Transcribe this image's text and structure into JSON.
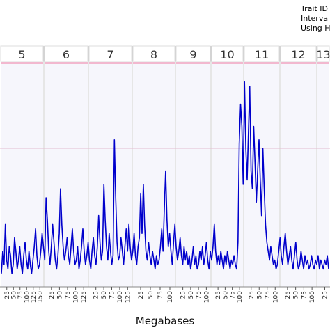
{
  "legend": {
    "lines": [
      "Trait ID",
      "Interva",
      "Using H"
    ]
  },
  "chart_data": {
    "type": "line",
    "title": "",
    "xlabel": "Megabases",
    "ylabel": "",
    "grid": true,
    "chromosomes": [
      {
        "label": "5",
        "ticks": [
          "25",
          "50",
          "75",
          "100",
          "125",
          "150"
        ]
      },
      {
        "label": "6",
        "ticks": [
          "25",
          "50",
          "75",
          "100",
          "125"
        ]
      },
      {
        "label": "7",
        "ticks": [
          "25",
          "50",
          "75",
          "100",
          "125"
        ]
      },
      {
        "label": "8",
        "ticks": [
          "25",
          "50",
          "75",
          "100"
        ]
      },
      {
        "label": "9",
        "ticks": [
          "25",
          "50",
          "75",
          "100"
        ]
      },
      {
        "label": "10",
        "ticks": [
          "25",
          "50",
          "75",
          "100"
        ]
      },
      {
        "label": "11",
        "ticks": [
          "25",
          "50",
          "75",
          "100"
        ]
      },
      {
        "label": "12",
        "ticks": [
          "25",
          "50",
          "75",
          "100"
        ]
      },
      {
        "label": "13",
        "ticks": [
          "25"
        ]
      }
    ],
    "series": [
      {
        "color": "#0000cc",
        "values": [
          0.3,
          0.8,
          0.5,
          1.4,
          0.6,
          0.4,
          0.9,
          0.7,
          0.3,
          0.5,
          1.1,
          0.8,
          0.4,
          0.6,
          0.9,
          0.5,
          0.3,
          0.7,
          1.0,
          0.6,
          0.4,
          0.8,
          0.5,
          0.3,
          0.6,
          0.9,
          1.3,
          0.7,
          0.4,
          0.5,
          0.8,
          1.2,
          0.9,
          0.6,
          2.0,
          1.5,
          0.8,
          0.5,
          0.9,
          1.4,
          1.0,
          0.6,
          0.4,
          0.7,
          1.2,
          2.2,
          1.4,
          0.9,
          0.6,
          0.8,
          1.1,
          0.7,
          0.5,
          0.9,
          1.3,
          0.8,
          0.5,
          0.6,
          0.9,
          0.4,
          0.6,
          0.9,
          1.3,
          0.8,
          0.5,
          0.7,
          1.0,
          0.6,
          0.4,
          0.8,
          1.1,
          0.7,
          0.5,
          0.9,
          1.6,
          1.0,
          0.6,
          0.8,
          2.3,
          1.5,
          0.9,
          0.6,
          1.2,
          0.8,
          0.5,
          0.7,
          3.3,
          2.0,
          1.0,
          0.6,
          0.7,
          1.1,
          0.8,
          0.5,
          0.9,
          1.3,
          0.8,
          1.4,
          0.9,
          0.6,
          0.8,
          1.2,
          0.7,
          0.5,
          0.9,
          1.1,
          2.1,
          1.2,
          2.3,
          1.4,
          0.8,
          0.6,
          1.0,
          0.7,
          0.5,
          0.8,
          0.6,
          0.4,
          0.7,
          0.5,
          0.6,
          0.9,
          1.3,
          0.8,
          1.8,
          2.6,
          1.5,
          0.9,
          1.2,
          0.8,
          0.5,
          1.0,
          1.4,
          0.9,
          0.6,
          0.8,
          1.1,
          0.7,
          0.5,
          0.9,
          0.6,
          0.8,
          0.5,
          0.7,
          0.4,
          0.6,
          0.9,
          0.5,
          0.7,
          0.4,
          0.5,
          0.8,
          0.6,
          0.9,
          0.5,
          0.7,
          1.0,
          0.6,
          0.4,
          0.8,
          0.6,
          0.9,
          1.4,
          0.8,
          0.5,
          0.7,
          0.5,
          0.8,
          0.6,
          0.4,
          0.7,
          0.5,
          0.8,
          0.6,
          0.4,
          0.6,
          0.5,
          0.7,
          0.5,
          0.4,
          1.0,
          3.2,
          4.1,
          3.6,
          2.3,
          4.6,
          3.1,
          2.4,
          3.5,
          4.5,
          2.6,
          2.2,
          3.6,
          2.8,
          1.9,
          2.6,
          3.3,
          2.4,
          1.6,
          3.1,
          2.2,
          1.4,
          1.0,
          0.8,
          0.6,
          0.9,
          0.7,
          0.5,
          0.6,
          0.4,
          0.5,
          0.8,
          1.1,
          0.7,
          0.5,
          0.9,
          1.2,
          0.8,
          0.5,
          0.7,
          0.9,
          0.6,
          0.4,
          0.7,
          1.0,
          0.6,
          0.4,
          0.5,
          0.8,
          0.6,
          0.4,
          0.7,
          0.5,
          0.6,
          0.4,
          0.5,
          0.7,
          0.5,
          0.4,
          0.6,
          0.5,
          0.7,
          0.4,
          0.6,
          0.5,
          0.4,
          0.6,
          0.5,
          0.7,
          0.4
        ]
      }
    ]
  }
}
